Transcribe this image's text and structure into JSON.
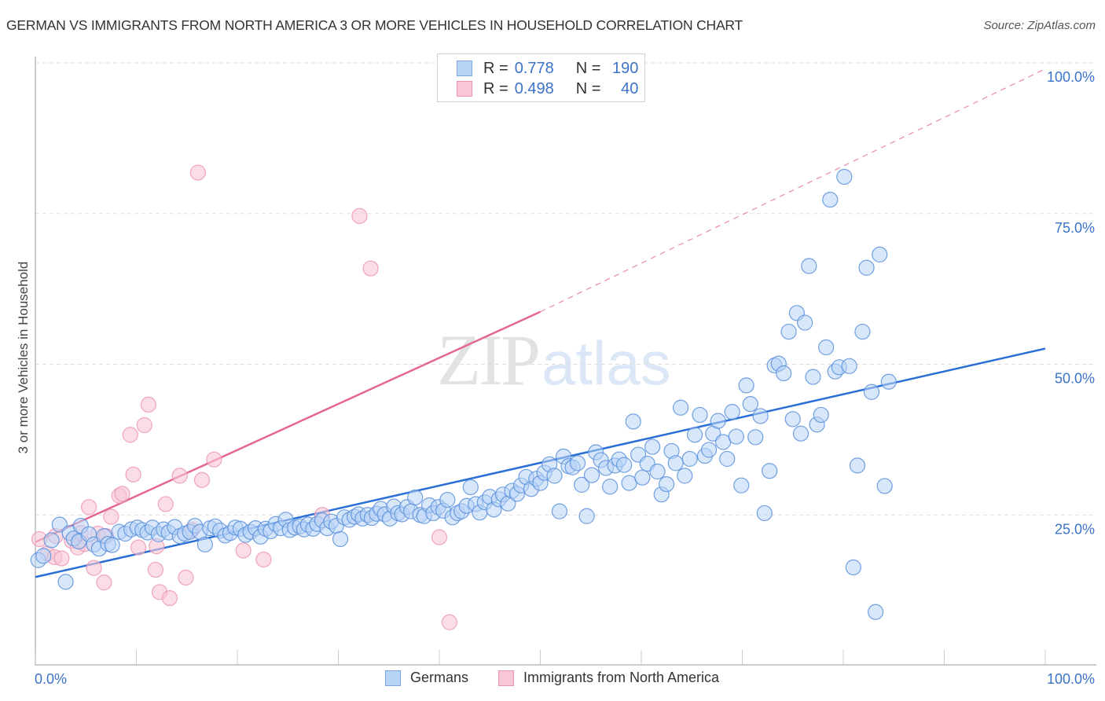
{
  "title": "GERMAN VS IMMIGRANTS FROM NORTH AMERICA 3 OR MORE VEHICLES IN HOUSEHOLD CORRELATION CHART",
  "source": "Source: ZipAtlas.com",
  "watermark": {
    "zip": "ZIP",
    "atlas": "atlas"
  },
  "legend": {
    "series": [
      {
        "name": "Germans",
        "r_label": "R =",
        "r_value": "0.778",
        "n_label": "N =",
        "n_value": "190",
        "fill": "#b8d3f5",
        "stroke": "#7aa8e6"
      },
      {
        "name": "Immigrants from North America",
        "r_label": "R =",
        "r_value": "0.498",
        "n_label": "N =",
        "n_value": "40",
        "fill": "#f9c6d5",
        "stroke": "#ec97b1"
      }
    ]
  },
  "chart_data": {
    "type": "scatter",
    "title": "GERMAN VS IMMIGRANTS FROM NORTH AMERICA 3 OR MORE VEHICLES IN HOUSEHOLD CORRELATION CHART",
    "xlabel": "",
    "ylabel": "3 or more Vehicles in Household",
    "xlim": [
      0,
      100
    ],
    "ylim": [
      0,
      100
    ],
    "x_tick_labels": [
      "0.0%",
      "100.0%"
    ],
    "y_tick_labels": [
      "25.0%",
      "50.0%",
      "75.0%",
      "100.0%"
    ],
    "y_ticks": [
      25,
      50,
      75,
      100
    ],
    "x_minor_ticks": [
      0,
      10,
      20,
      30,
      40,
      50,
      60,
      70,
      80,
      90,
      100
    ],
    "grid": "horizontal-dashed",
    "legend_position": "top-center",
    "points_note": "Approximate positions estimated from the rendered pixels; partial set (overlapping points in dense cluster not individually resolvable)",
    "series": [
      {
        "name": "Germans",
        "color": "#3b73c9",
        "fill": "#b8d3f5",
        "trend": {
          "x": [
            0,
            100
          ],
          "y": [
            14.7,
            52.6
          ]
        },
        "points": [
          [
            0.3,
            17.5
          ],
          [
            0.8,
            18.2
          ],
          [
            1.6,
            20.8
          ],
          [
            2.4,
            23.4
          ],
          [
            3.0,
            13.9
          ],
          [
            3.4,
            22.0
          ],
          [
            3.8,
            21.1
          ],
          [
            4.3,
            20.6
          ],
          [
            4.5,
            23.2
          ],
          [
            5.3,
            21.8
          ],
          [
            5.8,
            20.1
          ],
          [
            6.3,
            19.4
          ],
          [
            6.8,
            21.5
          ],
          [
            7.2,
            20.2
          ],
          [
            7.6,
            20.0
          ],
          [
            8.3,
            22.2
          ],
          [
            8.9,
            21.9
          ],
          [
            9.5,
            22.6
          ],
          [
            10.1,
            22.9
          ],
          [
            10.6,
            22.5
          ],
          [
            11.1,
            22.1
          ],
          [
            11.6,
            22.9
          ],
          [
            12.2,
            21.8
          ],
          [
            12.7,
            22.6
          ],
          [
            13.2,
            22.1
          ],
          [
            13.8,
            23.0
          ],
          [
            14.3,
            21.5
          ],
          [
            14.8,
            21.9
          ],
          [
            15.3,
            22.2
          ],
          [
            15.8,
            23.2
          ],
          [
            16.3,
            22.2
          ],
          [
            16.8,
            20.1
          ],
          [
            17.3,
            22.8
          ],
          [
            17.8,
            23.1
          ],
          [
            18.3,
            22.4
          ],
          [
            18.8,
            21.6
          ],
          [
            19.3,
            22.0
          ],
          [
            19.8,
            22.9
          ],
          [
            20.3,
            22.7
          ],
          [
            20.8,
            21.7
          ],
          [
            21.3,
            22.2
          ],
          [
            21.8,
            22.8
          ],
          [
            22.3,
            21.4
          ],
          [
            22.8,
            22.7
          ],
          [
            23.3,
            22.3
          ],
          [
            23.8,
            23.5
          ],
          [
            24.3,
            22.8
          ],
          [
            24.8,
            24.2
          ],
          [
            25.2,
            22.5
          ],
          [
            25.7,
            22.9
          ],
          [
            26.2,
            23.1
          ],
          [
            26.6,
            22.6
          ],
          [
            27.0,
            23.4
          ],
          [
            27.5,
            22.7
          ],
          [
            27.9,
            23.5
          ],
          [
            28.4,
            24.1
          ],
          [
            28.9,
            22.8
          ],
          [
            29.3,
            23.9
          ],
          [
            29.8,
            23.2
          ],
          [
            30.2,
            21.0
          ],
          [
            30.6,
            24.6
          ],
          [
            31.1,
            24.2
          ],
          [
            31.6,
            24.7
          ],
          [
            32.0,
            25.1
          ],
          [
            32.4,
            24.4
          ],
          [
            32.9,
            25.0
          ],
          [
            33.3,
            24.5
          ],
          [
            33.8,
            25.2
          ],
          [
            34.2,
            26.0
          ],
          [
            34.6,
            25.1
          ],
          [
            35.1,
            24.4
          ],
          [
            35.5,
            26.4
          ],
          [
            35.9,
            25.3
          ],
          [
            36.3,
            25.1
          ],
          [
            36.8,
            26.3
          ],
          [
            37.2,
            25.6
          ],
          [
            37.6,
            27.9
          ],
          [
            38.1,
            25.0
          ],
          [
            38.5,
            24.8
          ],
          [
            39.0,
            26.6
          ],
          [
            39.4,
            25.3
          ],
          [
            39.9,
            26.3
          ],
          [
            40.4,
            25.7
          ],
          [
            40.8,
            27.5
          ],
          [
            41.3,
            24.6
          ],
          [
            41.8,
            25.3
          ],
          [
            42.2,
            25.6
          ],
          [
            42.7,
            26.5
          ],
          [
            43.1,
            29.6
          ],
          [
            43.6,
            26.8
          ],
          [
            44.0,
            25.4
          ],
          [
            44.5,
            27.1
          ],
          [
            45.0,
            28.0
          ],
          [
            45.4,
            25.9
          ],
          [
            45.9,
            27.6
          ],
          [
            46.3,
            28.4
          ],
          [
            46.8,
            26.9
          ],
          [
            47.2,
            29.0
          ],
          [
            47.7,
            28.5
          ],
          [
            48.1,
            29.9
          ],
          [
            48.6,
            31.3
          ],
          [
            49.1,
            29.3
          ],
          [
            49.6,
            31.0
          ],
          [
            50.0,
            30.3
          ],
          [
            50.4,
            32.0
          ],
          [
            50.9,
            33.4
          ],
          [
            51.4,
            31.5
          ],
          [
            51.9,
            25.6
          ],
          [
            52.3,
            34.7
          ],
          [
            52.8,
            33.1
          ],
          [
            53.2,
            32.9
          ],
          [
            53.7,
            33.6
          ],
          [
            54.1,
            30.0
          ],
          [
            54.6,
            24.8
          ],
          [
            55.1,
            31.6
          ],
          [
            55.5,
            35.4
          ],
          [
            56.0,
            34.1
          ],
          [
            56.5,
            32.8
          ],
          [
            56.9,
            29.7
          ],
          [
            57.4,
            33.2
          ],
          [
            57.8,
            34.2
          ],
          [
            58.3,
            33.3
          ],
          [
            58.8,
            30.3
          ],
          [
            59.2,
            40.5
          ],
          [
            59.7,
            35.0
          ],
          [
            60.1,
            31.2
          ],
          [
            60.6,
            33.5
          ],
          [
            61.1,
            36.3
          ],
          [
            61.6,
            32.2
          ],
          [
            62.0,
            28.4
          ],
          [
            62.5,
            30.1
          ],
          [
            63.0,
            35.6
          ],
          [
            63.4,
            33.6
          ],
          [
            63.9,
            42.8
          ],
          [
            64.3,
            31.5
          ],
          [
            64.8,
            34.3
          ],
          [
            65.3,
            38.3
          ],
          [
            65.8,
            41.6
          ],
          [
            66.3,
            34.8
          ],
          [
            66.7,
            35.8
          ],
          [
            67.1,
            38.5
          ],
          [
            67.6,
            40.6
          ],
          [
            68.1,
            37.1
          ],
          [
            68.5,
            34.3
          ],
          [
            69.0,
            42.1
          ],
          [
            69.4,
            38.0
          ],
          [
            69.9,
            29.9
          ],
          [
            70.4,
            46.5
          ],
          [
            70.8,
            43.4
          ],
          [
            71.3,
            37.9
          ],
          [
            71.8,
            41.4
          ],
          [
            72.2,
            25.3
          ],
          [
            72.7,
            32.3
          ],
          [
            73.2,
            49.8
          ],
          [
            73.6,
            50.1
          ],
          [
            74.1,
            48.5
          ],
          [
            74.6,
            55.4
          ],
          [
            75.0,
            40.9
          ],
          [
            75.4,
            58.5
          ],
          [
            75.8,
            38.5
          ],
          [
            76.2,
            56.9
          ],
          [
            76.6,
            66.3
          ],
          [
            77.0,
            47.9
          ],
          [
            77.4,
            40.0
          ],
          [
            77.8,
            41.6
          ],
          [
            78.3,
            52.8
          ],
          [
            78.7,
            77.3
          ],
          [
            79.2,
            48.8
          ],
          [
            79.6,
            49.5
          ],
          [
            80.1,
            81.1
          ],
          [
            80.6,
            49.7
          ],
          [
            81.0,
            16.3
          ],
          [
            81.4,
            33.2
          ],
          [
            81.9,
            55.4
          ],
          [
            82.3,
            66.0
          ],
          [
            82.8,
            45.4
          ],
          [
            83.2,
            8.9
          ],
          [
            83.6,
            68.2
          ],
          [
            84.1,
            29.8
          ],
          [
            84.5,
            47.1
          ]
        ]
      },
      {
        "name": "Immigrants from North America",
        "color": "#e4688e",
        "fill": "#f9c6d5",
        "trend": {
          "x": [
            0,
            50
          ],
          "y": [
            20.5,
            58.7
          ]
        },
        "trend_dashed": {
          "x": [
            50,
            100
          ],
          "y": [
            58.7,
            99.0
          ]
        },
        "points": [
          [
            0.4,
            21.0
          ],
          [
            1.2,
            18.6
          ],
          [
            1.9,
            18.0
          ],
          [
            2.6,
            17.8
          ],
          [
            3.6,
            20.7
          ],
          [
            4.2,
            19.6
          ],
          [
            4.9,
            20.2
          ],
          [
            5.3,
            26.3
          ],
          [
            5.8,
            16.2
          ],
          [
            6.2,
            21.9
          ],
          [
            6.8,
            13.8
          ],
          [
            7.5,
            24.7
          ],
          [
            8.3,
            28.2
          ],
          [
            8.6,
            28.5
          ],
          [
            9.4,
            38.3
          ],
          [
            9.7,
            31.7
          ],
          [
            10.2,
            19.6
          ],
          [
            10.8,
            39.9
          ],
          [
            11.2,
            43.3
          ],
          [
            11.9,
            15.9
          ],
          [
            12.3,
            12.2
          ],
          [
            12.9,
            26.8
          ],
          [
            13.3,
            11.2
          ],
          [
            14.3,
            31.5
          ],
          [
            14.9,
            14.6
          ],
          [
            16.1,
            81.8
          ],
          [
            16.5,
            30.8
          ],
          [
            17.7,
            34.2
          ],
          [
            20.6,
            19.1
          ],
          [
            22.6,
            17.6
          ],
          [
            28.4,
            25.0
          ],
          [
            32.1,
            74.6
          ],
          [
            33.2,
            65.9
          ],
          [
            40.0,
            21.3
          ],
          [
            41.0,
            7.2
          ],
          [
            4.5,
            22.0
          ],
          [
            7.0,
            21.5
          ],
          [
            12.0,
            19.8
          ],
          [
            15.5,
            22.5
          ],
          [
            2.0,
            21.5
          ]
        ]
      }
    ]
  }
}
